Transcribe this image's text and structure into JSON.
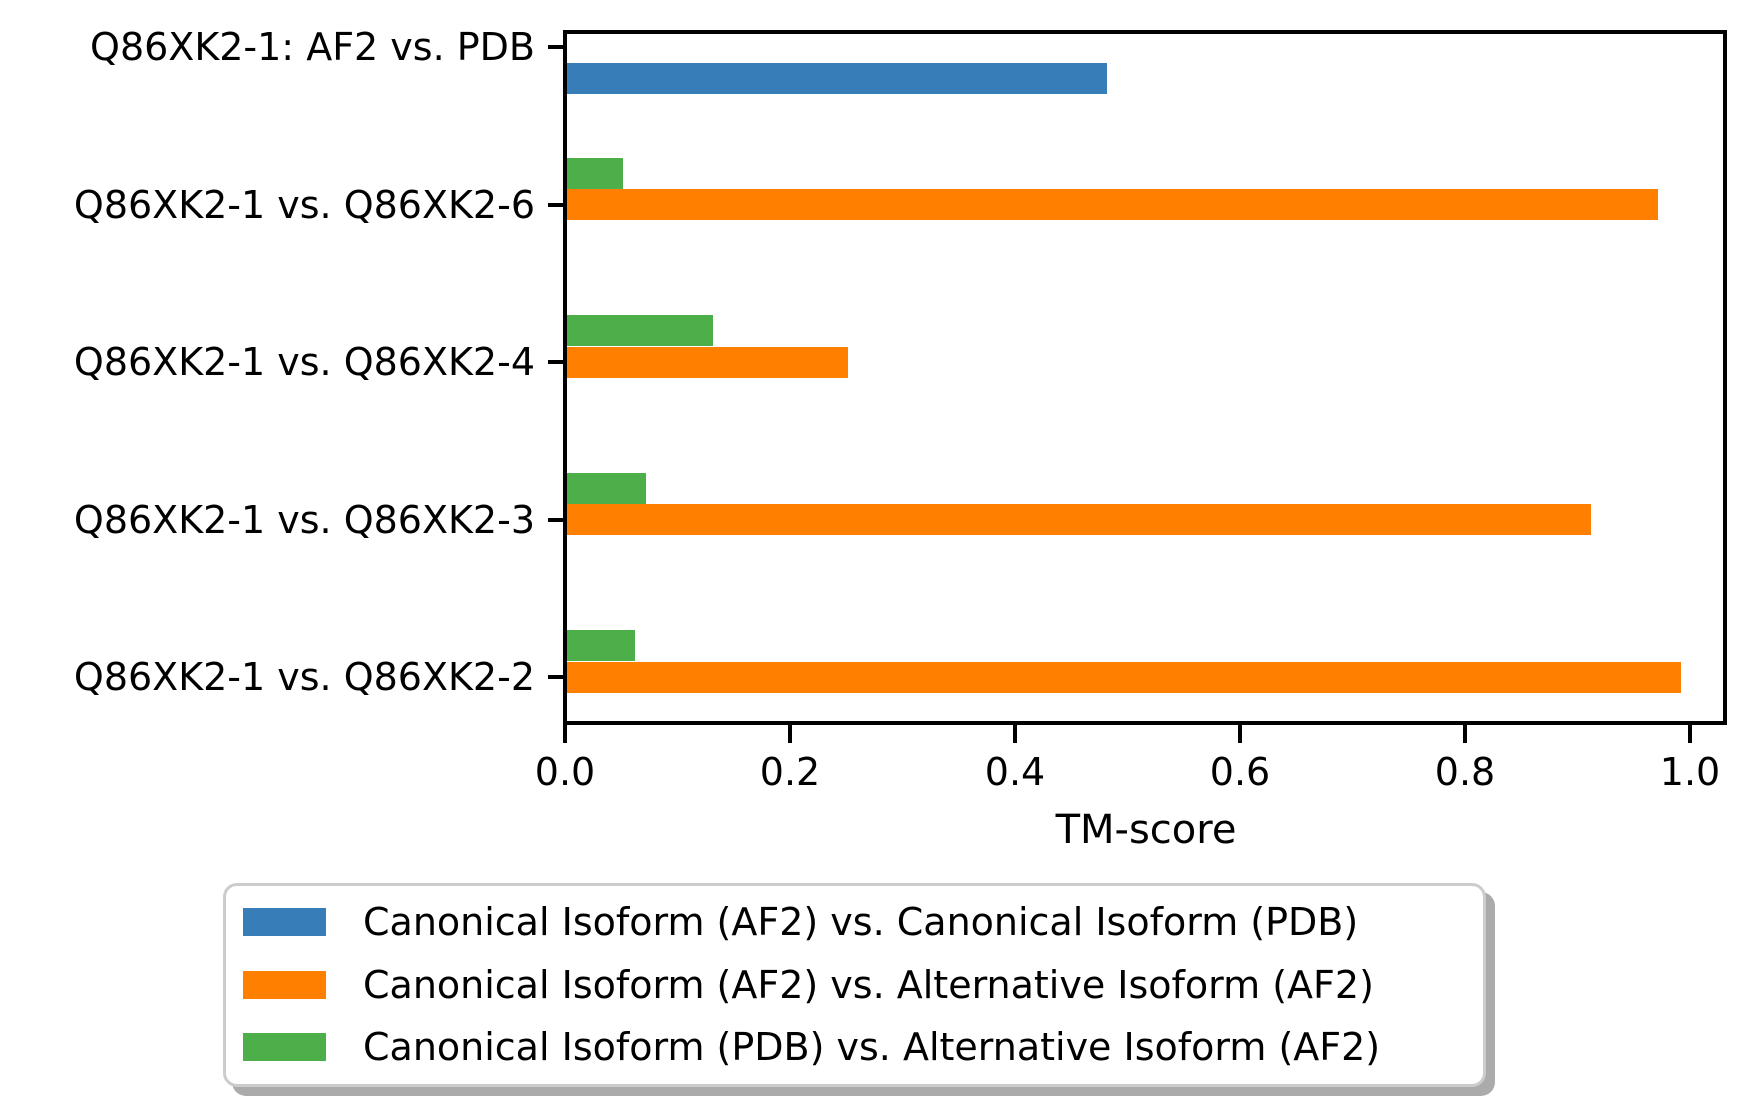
{
  "figure": {
    "background": "#ffffff",
    "spine_color": "#000000",
    "text_color": "#000000"
  },
  "chart_data": {
    "type": "bar",
    "orientation": "horizontal",
    "title": "",
    "xlabel": "TM-score",
    "ylabel": "",
    "categories": [
      "Q86XK2-1: AF2 vs. PDB",
      "Q86XK2-1 vs. Q86XK2-6",
      "Q86XK2-1 vs. Q86XK2-4",
      "Q86XK2-1 vs. Q86XK2-3",
      "Q86XK2-1 vs. Q86XK2-2"
    ],
    "series": [
      {
        "name": "Canonical Isoform (AF2) vs. Canonical Isoform (PDB)",
        "color": "#377eb8",
        "values": [
          0.48,
          null,
          null,
          null,
          null
        ]
      },
      {
        "name": "Canonical Isoform (AF2) vs. Alternative Isoform (AF2)",
        "color": "#ff7f00",
        "values": [
          null,
          0.97,
          0.25,
          0.91,
          0.99
        ]
      },
      {
        "name": "Canonical Isoform (PDB) vs. Alternative Isoform (AF2)",
        "color": "#4daf4a",
        "values": [
          null,
          0.05,
          0.13,
          0.07,
          0.06
        ]
      }
    ],
    "x_tick_labels": [
      "0.0",
      "0.2",
      "0.4",
      "0.6",
      "0.8",
      "1.0"
    ],
    "x_tick_values": [
      0.0,
      0.2,
      0.4,
      0.6,
      0.8,
      1.0
    ],
    "xlim": [
      0.0,
      1.033
    ],
    "grid": false,
    "legend_position": "bottom"
  },
  "legend_style": {
    "border_color": "#cccccc",
    "shadow_color": "#ababab",
    "background": "#ffffff"
  }
}
